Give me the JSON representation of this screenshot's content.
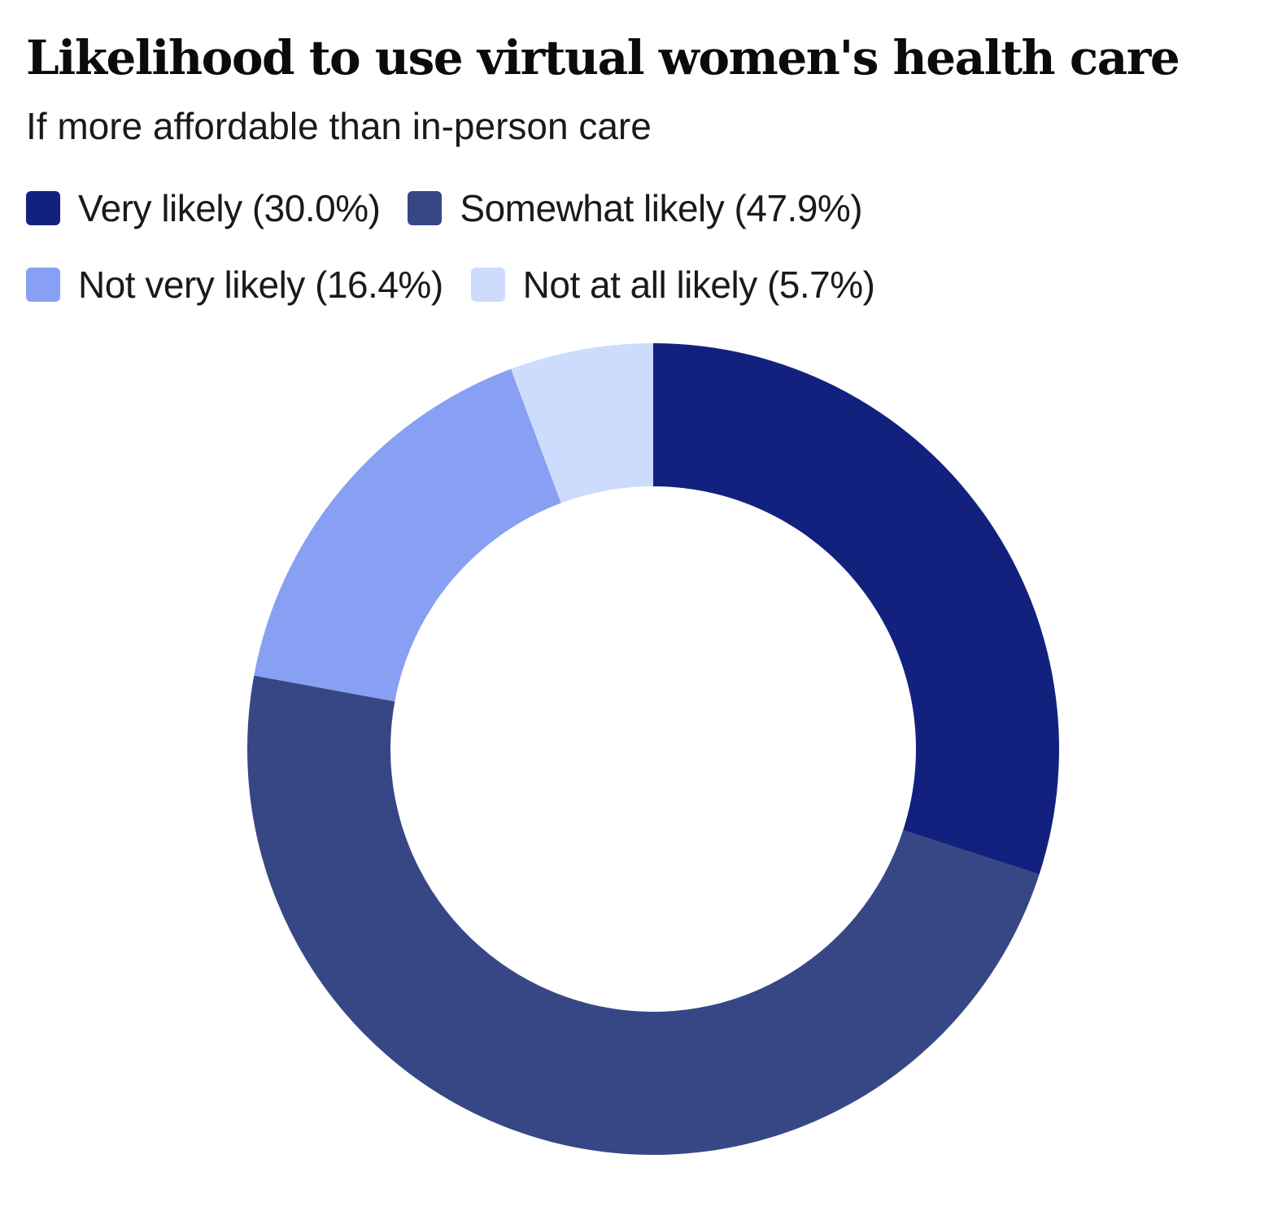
{
  "chart_data": {
    "type": "pie",
    "title": "Likelihood to use virtual women's health care",
    "subtitle": "If more affordable than in-person care",
    "legend_placement": "top-left",
    "donut": true,
    "slices": [
      {
        "key": "very-likely",
        "name": "Very likely",
        "value": 30.0,
        "legend_label": "Very likely (30.0%)",
        "color": "#13217e"
      },
      {
        "key": "somewhat-likely",
        "name": "Somewhat likely",
        "value": 47.9,
        "legend_label": "Somewhat likely (47.9%)",
        "color": "#374786"
      },
      {
        "key": "not-very-likely",
        "name": "Not very likely",
        "value": 16.4,
        "legend_label": "Not very likely (16.4%)",
        "color": "#87a0f3"
      },
      {
        "key": "not-at-all-likely",
        "name": "Not at all likely",
        "value": 5.7,
        "legend_label": "Not at all likely (5.7%)",
        "color": "#cddcfd"
      }
    ]
  }
}
